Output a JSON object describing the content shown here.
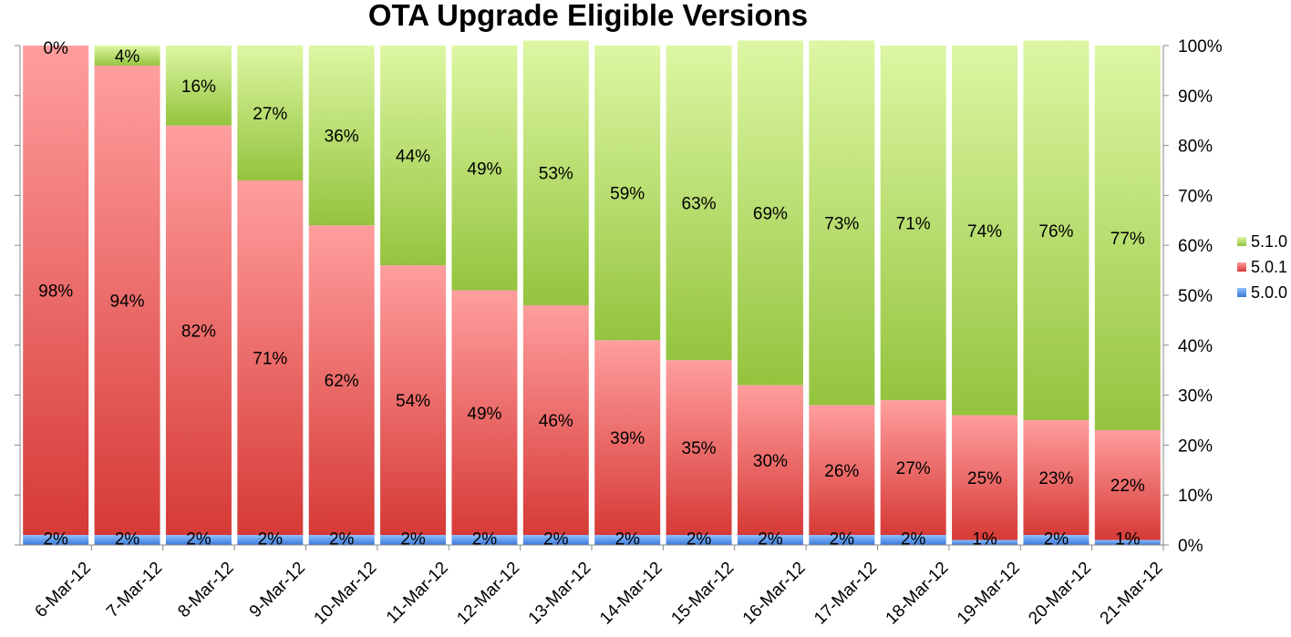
{
  "chart_data": {
    "type": "bar",
    "stacked": true,
    "title": "OTA Upgrade Eligible Versions",
    "categories": [
      "6-Mar-12",
      "7-Mar-12",
      "8-Mar-12",
      "9-Mar-12",
      "10-Mar-12",
      "11-Mar-12",
      "12-Mar-12",
      "13-Mar-12",
      "14-Mar-12",
      "15-Mar-12",
      "16-Mar-12",
      "17-Mar-12",
      "18-Mar-12",
      "19-Mar-12",
      "20-Mar-12",
      "21-Mar-12"
    ],
    "series": [
      {
        "name": "5.0.0",
        "color": "#4a86e0",
        "values": [
          2,
          2,
          2,
          2,
          2,
          2,
          2,
          2,
          2,
          2,
          2,
          2,
          2,
          1,
          2,
          1
        ],
        "labels": [
          "2%",
          "2%",
          "2%",
          "2%",
          "2%",
          "2%",
          "2%",
          "2%",
          "2%",
          "2%",
          "2%",
          "2%",
          "2%",
          "1%",
          "2%",
          "1%"
        ]
      },
      {
        "name": "5.0.1",
        "color": "#e05252",
        "values": [
          98,
          94,
          82,
          71,
          62,
          54,
          49,
          46,
          39,
          35,
          30,
          26,
          27,
          25,
          23,
          22
        ],
        "labels": [
          "98%",
          "94%",
          "82%",
          "71%",
          "62%",
          "54%",
          "49%",
          "46%",
          "39%",
          "35%",
          "30%",
          "26%",
          "27%",
          "25%",
          "23%",
          "22%"
        ]
      },
      {
        "name": "5.1.0",
        "color": "#a9d050",
        "values": [
          0,
          4,
          16,
          27,
          36,
          44,
          49,
          53,
          59,
          63,
          69,
          73,
          71,
          74,
          76,
          77
        ],
        "labels": [
          "0%",
          "4%",
          "16%",
          "27%",
          "36%",
          "44%",
          "49%",
          "53%",
          "59%",
          "63%",
          "69%",
          "73%",
          "71%",
          "74%",
          "76%",
          "77%"
        ]
      }
    ],
    "y_axis": {
      "min": 0,
      "max": 100,
      "ticks": [
        "0%",
        "10%",
        "20%",
        "30%",
        "40%",
        "50%",
        "60%",
        "70%",
        "80%",
        "90%",
        "100%"
      ],
      "position": "right"
    },
    "legend": {
      "position": "right",
      "order": [
        "5.1.0",
        "5.0.1",
        "5.0.0"
      ]
    },
    "grid": false
  }
}
